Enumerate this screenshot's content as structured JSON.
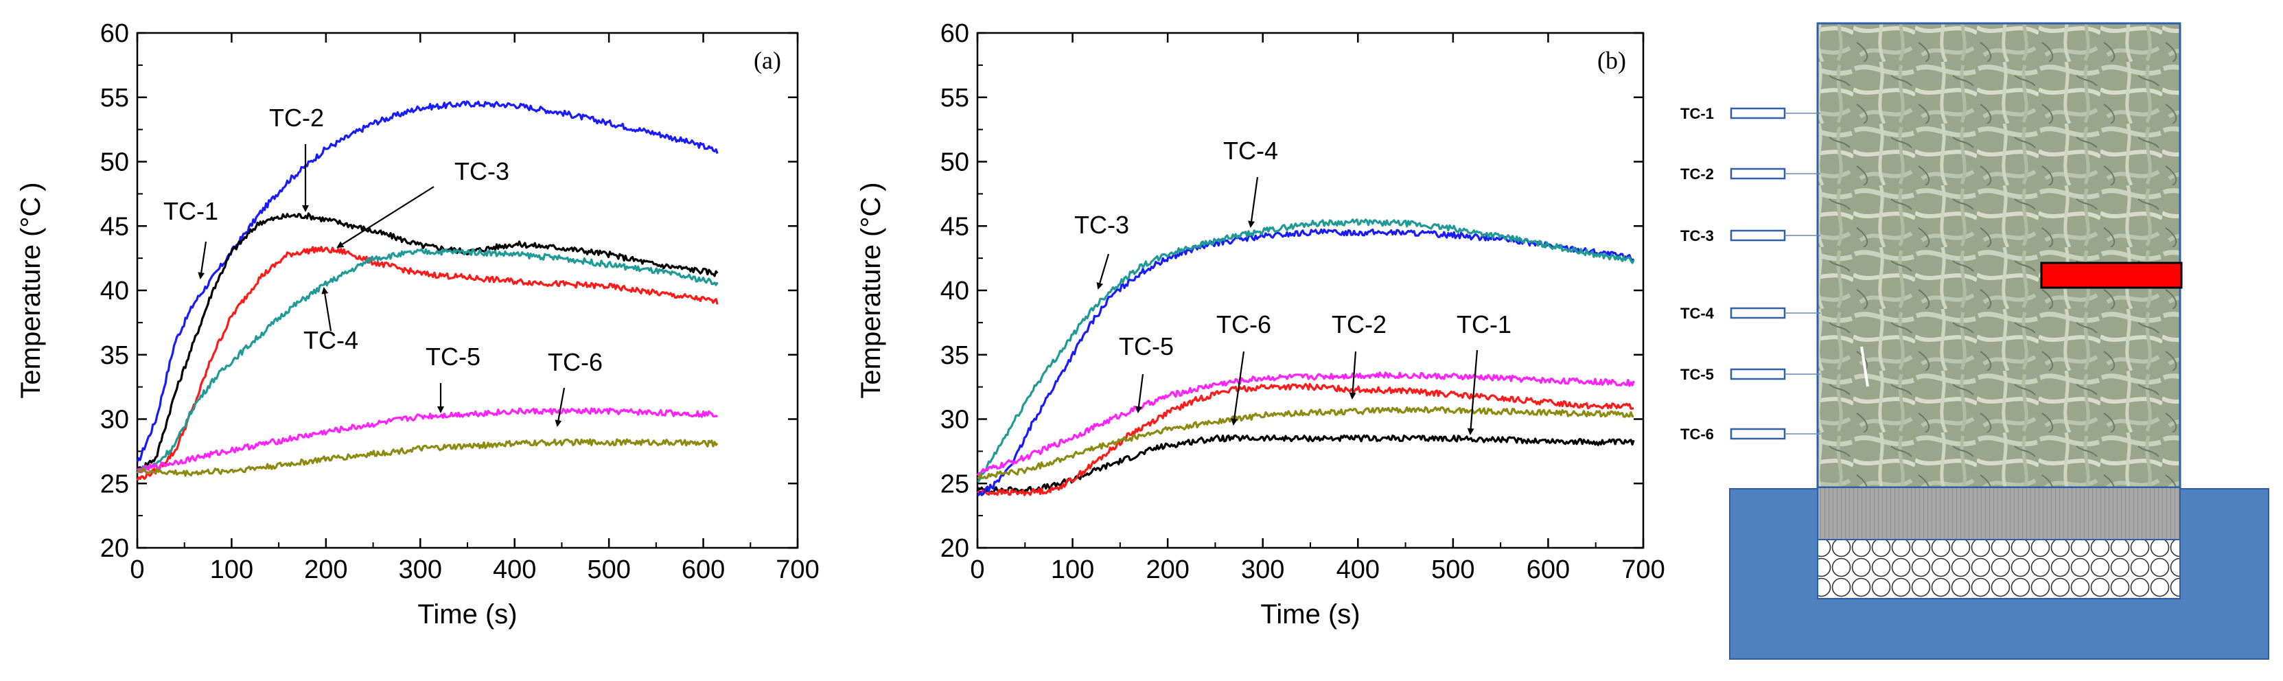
{
  "colors": {
    "blue": "#1a1aff",
    "black": "#000000",
    "red": "#ff1a1a",
    "teal": "#1f9a96",
    "magenta": "#ff22ff",
    "olive": "#8c8a10",
    "base_blue": "#4f80c0",
    "frame_blue": "#2f5fa6",
    "heater_red": "#ff0000"
  },
  "chart_data": [
    {
      "type": "line",
      "panel_label": "(a)",
      "xlabel": "Time (s)",
      "ylabel": "Temperature (°C )",
      "xlim": [
        0,
        700
      ],
      "ylim": [
        20,
        60
      ],
      "xticks": [
        "0",
        "100",
        "200",
        "300",
        "400",
        "500",
        "600",
        "700"
      ],
      "yticks": [
        "20",
        "25",
        "30",
        "35",
        "40",
        "45",
        "50",
        "55",
        "60"
      ],
      "series": [
        {
          "name": "TC-1",
          "color": "blue",
          "x": [
            0,
            20,
            40,
            60,
            80,
            100,
            130,
            160,
            200,
            250,
            300,
            350,
            400,
            450,
            500,
            550,
            600,
            615
          ],
          "y": [
            26.5,
            30,
            36,
            39,
            41,
            43,
            46,
            48.5,
            51,
            53,
            54.2,
            54.5,
            54.4,
            53.8,
            53,
            52.2,
            51.2,
            50.8
          ]
        },
        {
          "name": "TC-2",
          "color": "black",
          "x": [
            0,
            20,
            40,
            60,
            80,
            100,
            130,
            160,
            180,
            200,
            230,
            270,
            300,
            350,
            400,
            450,
            500,
            550,
            600,
            615
          ],
          "y": [
            26,
            27,
            32,
            36,
            40,
            43,
            45.3,
            45.8,
            45.8,
            45.5,
            45,
            44.2,
            43.5,
            43,
            43.6,
            43.3,
            42.8,
            42,
            41.5,
            41.3
          ]
        },
        {
          "name": "TC-3",
          "color": "red",
          "x": [
            0,
            20,
            40,
            60,
            80,
            100,
            130,
            160,
            190,
            220,
            250,
            300,
            350,
            400,
            450,
            500,
            550,
            600,
            615
          ],
          "y": [
            25.3,
            26,
            27.5,
            31,
            35,
            38,
            41,
            42.8,
            43.2,
            43,
            42.2,
            41.3,
            41,
            40.7,
            40.5,
            40.3,
            39.8,
            39.3,
            39.1
          ]
        },
        {
          "name": "TC-4",
          "color": "teal",
          "x": [
            0,
            20,
            40,
            60,
            80,
            100,
            130,
            160,
            200,
            250,
            300,
            350,
            400,
            450,
            500,
            550,
            600,
            615
          ],
          "y": [
            26,
            26.5,
            28,
            31,
            33,
            34.5,
            36.5,
            38.5,
            40.5,
            42.5,
            43,
            43,
            42.8,
            42.5,
            42,
            41.5,
            40.8,
            40.6
          ]
        },
        {
          "name": "TC-5",
          "color": "magenta",
          "x": [
            0,
            50,
            100,
            150,
            200,
            250,
            300,
            350,
            400,
            450,
            500,
            550,
            600,
            615
          ],
          "y": [
            26,
            26.8,
            27.6,
            28.3,
            29,
            29.6,
            30.2,
            30.4,
            30.6,
            30.6,
            30.6,
            30.5,
            30.4,
            30.4
          ]
        },
        {
          "name": "TC-6",
          "color": "olive",
          "x": [
            0,
            50,
            100,
            150,
            200,
            250,
            300,
            350,
            400,
            450,
            500,
            550,
            600,
            615
          ],
          "y": [
            26,
            25.8,
            26,
            26.4,
            26.9,
            27.3,
            27.7,
            27.9,
            28.1,
            28.2,
            28.2,
            28.2,
            28.1,
            28.1
          ]
        }
      ],
      "annotations": [
        "TC-1",
        "TC-2",
        "TC-3",
        "TC-4",
        "TC-5",
        "TC-6"
      ]
    },
    {
      "type": "line",
      "panel_label": "(b)",
      "xlabel": "Time (s)",
      "ylabel": "Temperature (°C )",
      "xlim": [
        0,
        700
      ],
      "ylim": [
        20,
        60
      ],
      "xticks": [
        "0",
        "100",
        "200",
        "300",
        "400",
        "500",
        "600",
        "700"
      ],
      "yticks": [
        "20",
        "25",
        "30",
        "35",
        "40",
        "45",
        "50",
        "55",
        "60"
      ],
      "series": [
        {
          "name": "TC-1",
          "color": "black",
          "x": [
            0,
            50,
            80,
            100,
            130,
            160,
            190,
            220,
            250,
            300,
            350,
            400,
            450,
            500,
            550,
            600,
            650,
            690
          ],
          "y": [
            24.5,
            24.5,
            24.8,
            25.3,
            26.2,
            27,
            27.8,
            28.2,
            28.5,
            28.5,
            28.5,
            28.5,
            28.5,
            28.5,
            28.4,
            28.3,
            28.2,
            28.2
          ]
        },
        {
          "name": "TC-2",
          "color": "red",
          "x": [
            0,
            50,
            80,
            100,
            130,
            160,
            200,
            230,
            260,
            300,
            350,
            400,
            450,
            500,
            550,
            600,
            650,
            690
          ],
          "y": [
            24.3,
            24.3,
            24.5,
            25.3,
            27,
            28.8,
            30.5,
            31.5,
            32.2,
            32.5,
            32.5,
            32.3,
            32.2,
            31.9,
            31.6,
            31.3,
            31,
            31
          ]
        },
        {
          "name": "TC-3",
          "color": "blue",
          "x": [
            0,
            20,
            40,
            60,
            80,
            100,
            120,
            140,
            170,
            200,
            230,
            260,
            300,
            350,
            400,
            450,
            500,
            550,
            600,
            650,
            690
          ],
          "y": [
            24,
            25,
            27,
            30,
            32.5,
            35,
            37.5,
            39.5,
            41.3,
            42.5,
            43.3,
            43.8,
            44.2,
            44.5,
            44.5,
            44.5,
            44.3,
            44,
            43.5,
            43,
            42.5
          ]
        },
        {
          "name": "TC-4",
          "color": "teal",
          "x": [
            0,
            20,
            40,
            60,
            80,
            100,
            120,
            140,
            170,
            200,
            230,
            260,
            300,
            350,
            400,
            450,
            500,
            550,
            600,
            650,
            690
          ],
          "y": [
            25,
            27.5,
            30,
            32.5,
            34.5,
            36.5,
            38.5,
            40,
            41.8,
            42.8,
            43.5,
            44,
            44.6,
            45.2,
            45.3,
            45.2,
            44.8,
            44.2,
            43.5,
            42.8,
            42.3
          ]
        },
        {
          "name": "TC-5",
          "color": "magenta",
          "x": [
            0,
            50,
            100,
            150,
            200,
            250,
            300,
            350,
            400,
            450,
            500,
            550,
            600,
            650,
            690
          ],
          "y": [
            25.8,
            27,
            28.6,
            30.3,
            31.8,
            32.7,
            33.2,
            33.3,
            33.4,
            33.4,
            33.3,
            33.2,
            33,
            32.9,
            32.8
          ]
        },
        {
          "name": "TC-6",
          "color": "olive",
          "x": [
            0,
            50,
            100,
            150,
            200,
            250,
            300,
            350,
            400,
            450,
            500,
            550,
            600,
            650,
            690
          ],
          "y": [
            25.5,
            26,
            27.2,
            28.3,
            29.2,
            29.8,
            30.3,
            30.5,
            30.6,
            30.7,
            30.7,
            30.6,
            30.5,
            30.4,
            30.4
          ]
        }
      ],
      "annotations": [
        "TC-1",
        "TC-2",
        "TC-3",
        "TC-4",
        "TC-5",
        "TC-6"
      ]
    }
  ],
  "schematic": {
    "sensor_labels": [
      "TC-1",
      "TC-2",
      "TC-3",
      "TC-4",
      "TC-5",
      "TC-6"
    ]
  }
}
